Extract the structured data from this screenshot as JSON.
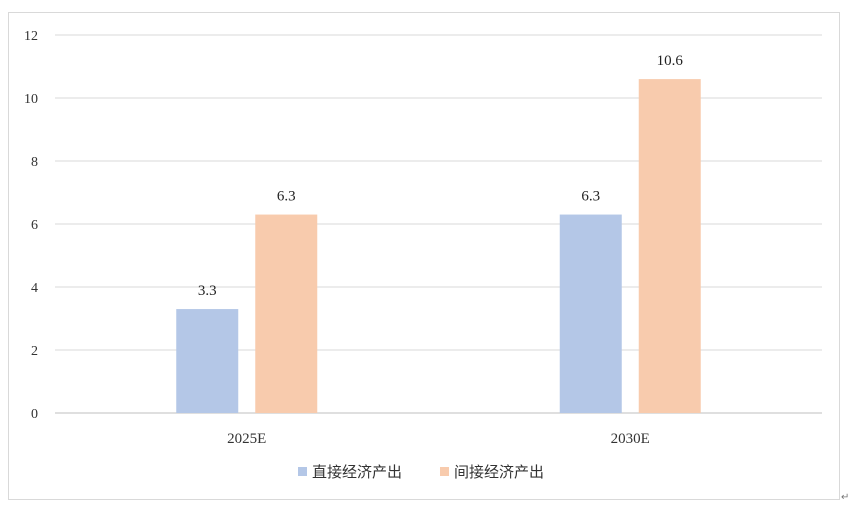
{
  "chart_data": {
    "type": "bar",
    "categories": [
      "2025E",
      "2030E"
    ],
    "series": [
      {
        "name": "直接经济产出",
        "values": [
          3.3,
          6.3
        ],
        "color": "#b4c7e7",
        "labels": [
          "3.3",
          "6.3"
        ]
      },
      {
        "name": "间接经济产出",
        "values": [
          6.3,
          10.6
        ],
        "color": "#f8cbad",
        "labels": [
          "6.3",
          "10.6"
        ]
      }
    ],
    "ylim": [
      0,
      12
    ],
    "yticks": [
      0,
      2,
      4,
      6,
      8,
      10,
      12
    ],
    "ytick_labels": [
      "0",
      "2",
      "4",
      "6",
      "8",
      "10",
      "12"
    ],
    "grid": true,
    "legend": "bottom"
  },
  "paragraph_mark": "↵"
}
